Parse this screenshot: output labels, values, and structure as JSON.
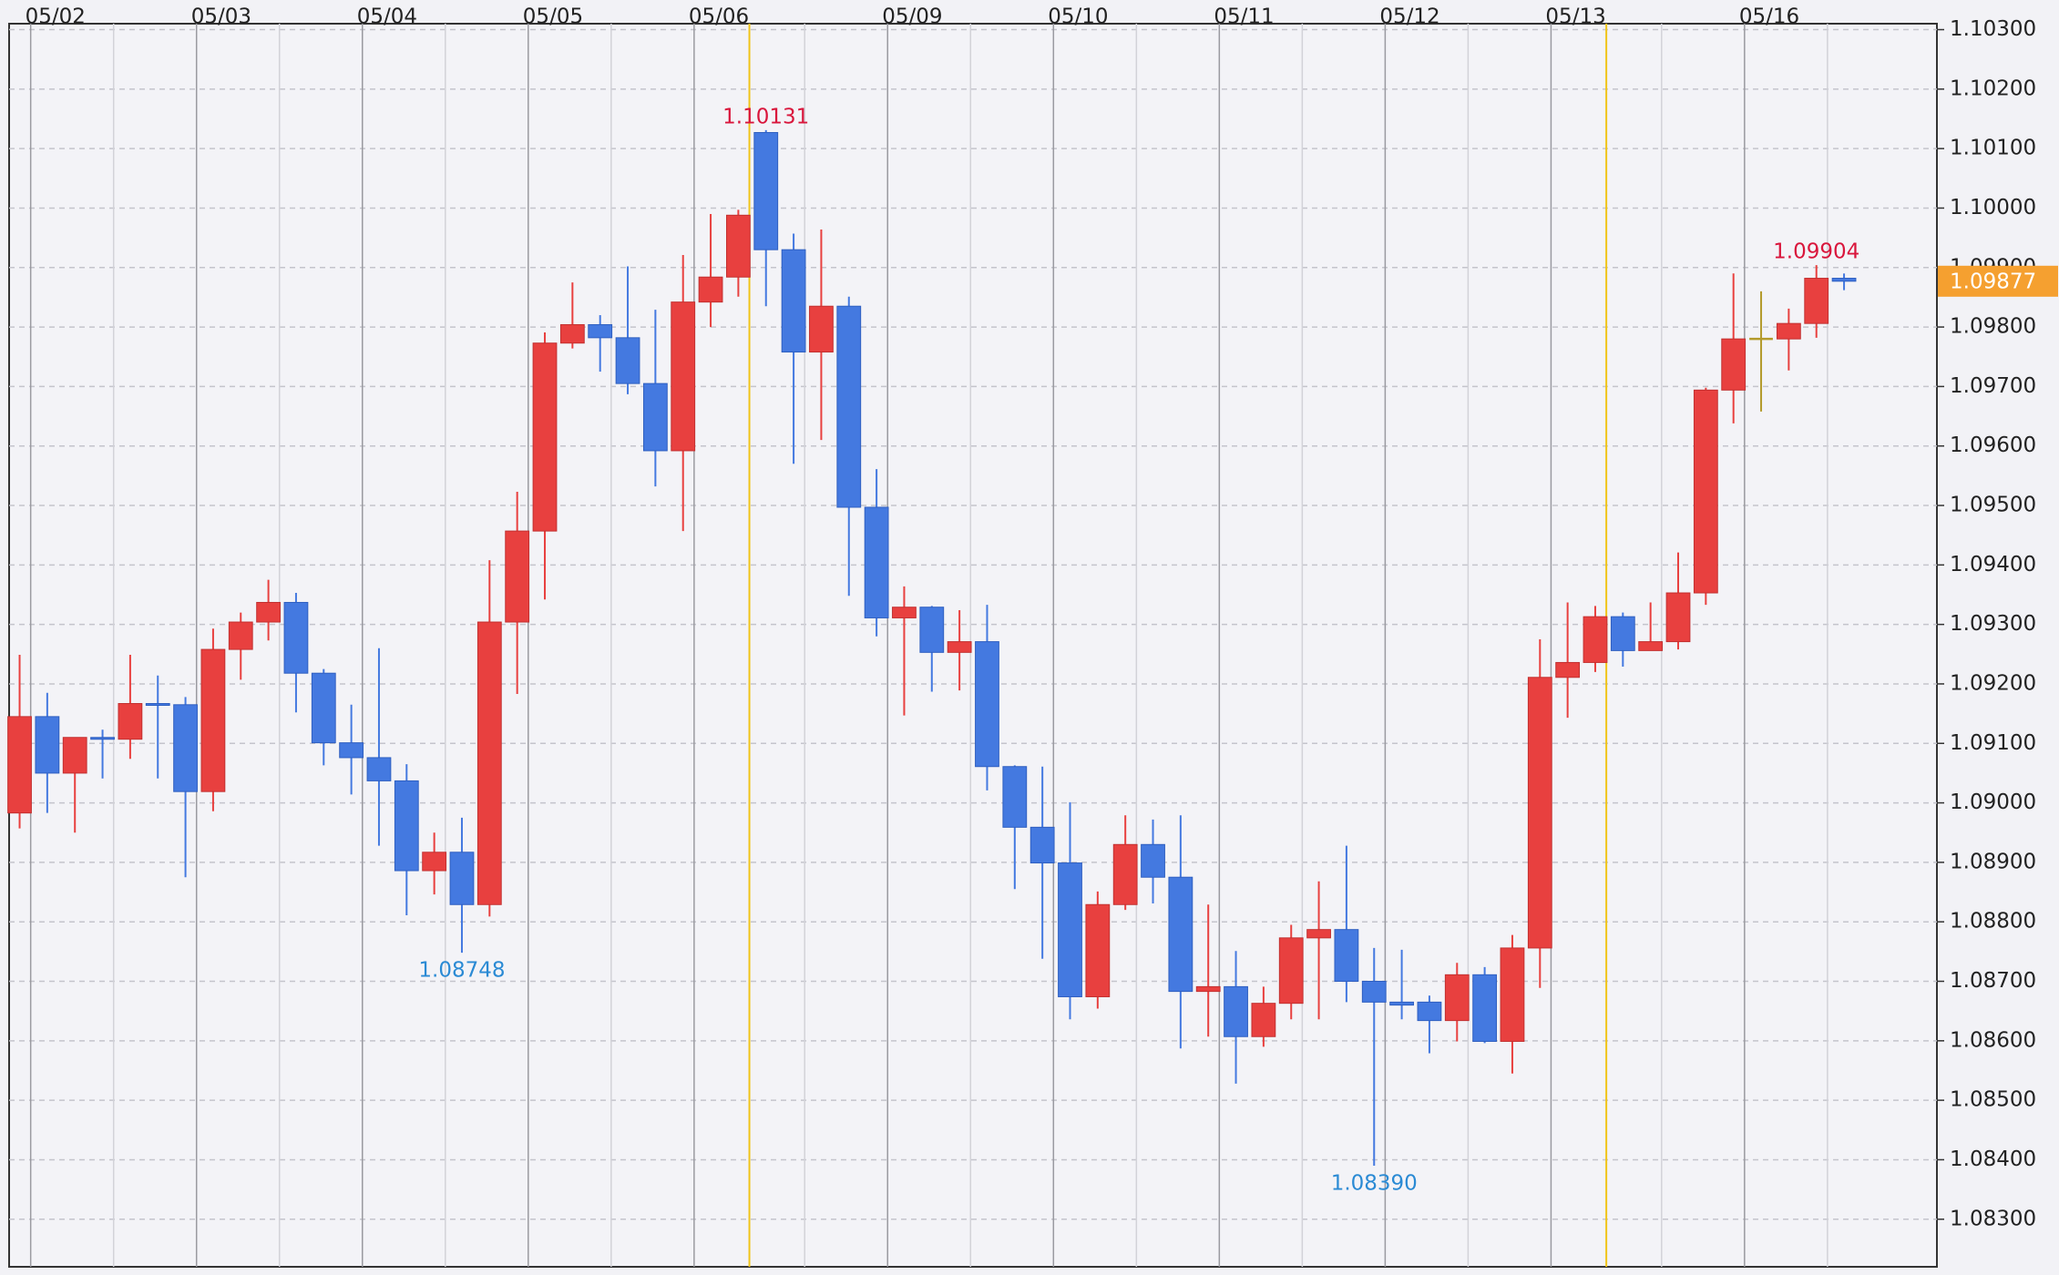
{
  "chart_data": {
    "type": "candlestick",
    "categories": [
      null,
      null,
      null,
      null,
      null,
      null,
      null,
      null,
      null,
      null,
      null,
      null,
      null,
      null,
      null,
      null,
      null,
      null,
      null,
      null,
      null,
      null,
      null,
      null,
      null,
      null,
      null,
      null,
      null,
      null,
      null,
      null,
      null,
      null,
      null,
      null,
      null,
      null,
      null,
      null,
      null,
      null,
      null,
      null,
      null,
      null,
      null,
      null,
      null,
      null,
      null,
      null,
      null,
      null,
      null,
      null,
      null,
      null,
      null,
      null,
      null,
      null,
      null,
      null,
      null,
      null,
      null
    ],
    "open": [
      1.08983,
      1.09145,
      1.0905,
      1.0911,
      1.09107,
      1.09167,
      1.09165,
      1.09019,
      1.09258,
      1.09304,
      1.09337,
      1.09218,
      1.09101,
      1.09076,
      1.09037,
      1.08886,
      1.08917,
      1.08829,
      1.09304,
      1.09457,
      1.09773,
      1.09804,
      1.09782,
      1.09705,
      1.09592,
      1.09842,
      1.09884,
      1.10127,
      1.0993,
      1.09758,
      1.09835,
      1.09497,
      1.09311,
      1.09329,
      1.09253,
      1.09271,
      1.09061,
      1.08959,
      1.08899,
      1.08674,
      1.08829,
      1.0893,
      1.08875,
      1.08683,
      1.08691,
      1.08607,
      1.08663,
      1.08773,
      1.08787,
      1.087,
      1.08665,
      1.08665,
      1.08634,
      1.08711,
      1.08599,
      1.08756,
      1.09211,
      1.09236,
      1.09313,
      1.09256,
      1.09271,
      1.09353,
      1.09694,
      1.0978,
      1.0978,
      1.09806,
      1.09882
    ],
    "high": [
      1.09249,
      1.09185,
      1.0911,
      1.09123,
      1.09249,
      1.09214,
      1.09178,
      1.09293,
      1.0932,
      1.09375,
      1.09353,
      1.09225,
      1.09165,
      1.0926,
      1.09065,
      1.0895,
      1.08975,
      1.09408,
      1.09523,
      1.09791,
      1.09875,
      1.0982,
      1.09902,
      1.09829,
      1.09921,
      1.0999,
      1.09997,
      1.10131,
      1.09957,
      1.09964,
      1.09851,
      1.09561,
      1.09364,
      1.09331,
      1.09324,
      1.09333,
      1.09063,
      1.09061,
      1.09001,
      1.08851,
      1.08979,
      1.08972,
      1.08979,
      1.08829,
      1.08751,
      1.08691,
      1.08795,
      1.08868,
      1.08928,
      1.08756,
      1.08753,
      1.08676,
      1.08731,
      1.08724,
      1.08778,
      1.09275,
      1.09337,
      1.09331,
      1.0932,
      1.09337,
      1.09421,
      1.09698,
      1.0989,
      1.0986,
      1.09831,
      1.09904,
      1.0989
    ],
    "low": [
      1.08957,
      1.08983,
      1.0895,
      1.09041,
      1.09074,
      1.09041,
      1.08875,
      1.08986,
      1.09207,
      1.09273,
      1.09152,
      1.09063,
      1.09014,
      1.08928,
      1.08811,
      1.08846,
      1.08748,
      1.08809,
      1.09183,
      1.09342,
      1.09764,
      1.09725,
      1.09687,
      1.09532,
      1.09457,
      1.098,
      1.09851,
      1.09835,
      1.0957,
      1.0961,
      1.09348,
      1.0928,
      1.09147,
      1.09187,
      1.09189,
      1.09021,
      1.08855,
      1.08738,
      1.08636,
      1.08654,
      1.0882,
      1.08831,
      1.08587,
      1.08607,
      1.08528,
      1.0859,
      1.08636,
      1.08636,
      1.08665,
      1.0839,
      1.08636,
      1.08579,
      1.08599,
      1.08596,
      1.08545,
      1.08689,
      1.09143,
      1.0922,
      1.09229,
      1.09256,
      1.09258,
      1.09333,
      1.09638,
      1.09658,
      1.09727,
      1.09782,
      1.09862
    ],
    "close": [
      1.09145,
      1.0905,
      1.0911,
      1.09107,
      1.09167,
      1.09165,
      1.09019,
      1.09258,
      1.09304,
      1.09337,
      1.09218,
      1.09101,
      1.09076,
      1.09037,
      1.08886,
      1.08917,
      1.08829,
      1.09304,
      1.09457,
      1.09773,
      1.09804,
      1.09782,
      1.09705,
      1.09592,
      1.09842,
      1.09884,
      1.09988,
      1.0993,
      1.09758,
      1.09835,
      1.09497,
      1.09311,
      1.09329,
      1.09253,
      1.09271,
      1.09061,
      1.08959,
      1.08899,
      1.08674,
      1.08829,
      1.0893,
      1.08875,
      1.08683,
      1.08691,
      1.08607,
      1.08663,
      1.08773,
      1.08787,
      1.087,
      1.08665,
      1.0866,
      1.08634,
      1.08711,
      1.08599,
      1.08756,
      1.09211,
      1.09236,
      1.09313,
      1.09256,
      1.09271,
      1.09353,
      1.09694,
      1.0978,
      1.0978,
      1.09806,
      1.09882,
      1.09877
    ],
    "up_color": "#e8403f",
    "down_color": "#4479e0",
    "flat_color": "#b39a2a",
    "xlim": [
      -0.38,
      69.36
    ],
    "xticks": [
      {
        "value": 0.4,
        "label": "05/02"
      },
      {
        "value": 6.4,
        "label": "05/03"
      },
      {
        "value": 12.4,
        "label": "05/04"
      },
      {
        "value": 18.4,
        "label": "05/05"
      },
      {
        "value": 24.4,
        "label": "05/06"
      },
      {
        "value": 31.4,
        "label": "05/09"
      },
      {
        "value": 37.4,
        "label": "05/10"
      },
      {
        "value": 43.4,
        "label": "05/11"
      },
      {
        "value": 49.4,
        "label": "05/12"
      },
      {
        "value": 55.4,
        "label": "05/13"
      },
      {
        "value": 62.4,
        "label": "05/16"
      }
    ],
    "xminor": [
      3.4,
      9.4,
      15.4,
      21.4,
      28.4,
      34.4,
      40.4,
      46.4,
      52.4,
      59.4,
      65.4
    ],
    "highlight_lines": {
      "values": [
        26.4,
        57.4
      ],
      "color": "#f0c419"
    },
    "ylim": [
      1.0822,
      1.1031
    ],
    "yticks": [
      {
        "value": 1.083,
        "label": "1.08300"
      },
      {
        "value": 1.084,
        "label": "1.08400"
      },
      {
        "value": 1.085,
        "label": "1.08500"
      },
      {
        "value": 1.086,
        "label": "1.08600"
      },
      {
        "value": 1.087,
        "label": "1.08700"
      },
      {
        "value": 1.088,
        "label": "1.08800"
      },
      {
        "value": 1.089,
        "label": "1.08900"
      },
      {
        "value": 1.09,
        "label": "1.09000"
      },
      {
        "value": 1.091,
        "label": "1.09100"
      },
      {
        "value": 1.092,
        "label": "1.09200"
      },
      {
        "value": 1.093,
        "label": "1.09300"
      },
      {
        "value": 1.094,
        "label": "1.09400"
      },
      {
        "value": 1.095,
        "label": "1.09500"
      },
      {
        "value": 1.096,
        "label": "1.09600"
      },
      {
        "value": 1.097,
        "label": "1.09700"
      },
      {
        "value": 1.098,
        "label": "1.09800"
      },
      {
        "value": 1.099,
        "label": "1.09900"
      },
      {
        "value": 1.1,
        "label": "1.10000"
      },
      {
        "value": 1.101,
        "label": "1.10100"
      },
      {
        "value": 1.102,
        "label": "1.10200"
      },
      {
        "value": 1.103,
        "label": "1.10300"
      }
    ],
    "grid": true,
    "annotations": [
      {
        "value": 1.10131,
        "label": "1.10131",
        "color": "#d9163c"
      },
      {
        "value": 1.08748,
        "label": "1.08748",
        "color": "#2a8ad4"
      },
      {
        "value": 1.0839,
        "label": "1.08390",
        "color": "#2a8ad4"
      },
      {
        "value": 1.09904,
        "label": "1.09904",
        "color": "#d9163c"
      }
    ],
    "last_price": {
      "value": 1.09877,
      "label": "1.09877",
      "color": "#f5a030"
    }
  }
}
